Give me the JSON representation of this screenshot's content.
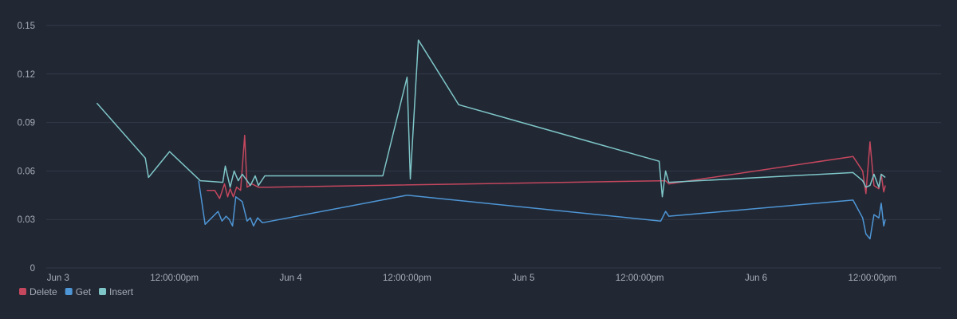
{
  "chart_data": {
    "type": "line",
    "title": "",
    "xlabel": "",
    "ylabel": "",
    "ylim": [
      0,
      0.15
    ],
    "xlim": [
      "2021-06-02 22:47",
      "2021-06-06 19:05"
    ],
    "grid": true,
    "legend_position": "bottom-left",
    "y_ticks": [
      {
        "value": 0.15,
        "label": "0.15"
      },
      {
        "value": 0.12,
        "label": "0.12"
      },
      {
        "value": 0.09,
        "label": "0.09"
      },
      {
        "value": 0.06,
        "label": "0.06"
      },
      {
        "value": 0.03,
        "label": "0.03"
      },
      {
        "value": 0,
        "label": "0"
      }
    ],
    "x_ticks": [
      {
        "value": "2021-06-03 00:00",
        "label": "Jun 3"
      },
      {
        "value": "2021-06-03 12:00",
        "label": "12:00:00pm"
      },
      {
        "value": "2021-06-04 00:00",
        "label": "Jun 4"
      },
      {
        "value": "2021-06-04 12:00",
        "label": "12:00:00pm"
      },
      {
        "value": "2021-06-05 00:00",
        "label": "Jun 5"
      },
      {
        "value": "2021-06-05 12:00",
        "label": "12:00:00pm"
      },
      {
        "value": "2021-06-06 00:00",
        "label": "Jun 6"
      },
      {
        "value": "2021-06-06 12:00",
        "label": "12:00:00pm"
      }
    ],
    "series": [
      {
        "name": "Delete",
        "color": "#c4475e",
        "points": [
          [
            "2021-06-03 15:20",
            0.048
          ],
          [
            "2021-06-03 16:10",
            0.048
          ],
          [
            "2021-06-03 16:40",
            0.043
          ],
          [
            "2021-06-03 17:10",
            0.052
          ],
          [
            "2021-06-03 17:30",
            0.044
          ],
          [
            "2021-06-03 17:45",
            0.049
          ],
          [
            "2021-06-03 18:05",
            0.044
          ],
          [
            "2021-06-03 18:25",
            0.05
          ],
          [
            "2021-06-03 18:50",
            0.048
          ],
          [
            "2021-06-03 19:15",
            0.082
          ],
          [
            "2021-06-03 19:30",
            0.05
          ],
          [
            "2021-06-03 20:00",
            0.052
          ],
          [
            "2021-06-03 20:40",
            0.05
          ],
          [
            "2021-06-03 21:40",
            0.05
          ],
          [
            "2021-06-05 14:40",
            0.054
          ],
          [
            "2021-06-05 15:00",
            0.052
          ],
          [
            "2021-06-06 10:00",
            0.069
          ],
          [
            "2021-06-06 11:00",
            0.06
          ],
          [
            "2021-06-06 11:20",
            0.046
          ],
          [
            "2021-06-06 11:45",
            0.078
          ],
          [
            "2021-06-06 12:10",
            0.051
          ],
          [
            "2021-06-06 12:40",
            0.049
          ],
          [
            "2021-06-06 12:55",
            0.058
          ],
          [
            "2021-06-06 13:10",
            0.047
          ],
          [
            "2021-06-06 13:20",
            0.051
          ]
        ]
      },
      {
        "name": "Get",
        "color": "#4e96d6",
        "points": [
          [
            "2021-06-03 14:30",
            0.054
          ],
          [
            "2021-06-03 15:10",
            0.027
          ],
          [
            "2021-06-03 16:30",
            0.035
          ],
          [
            "2021-06-03 16:55",
            0.029
          ],
          [
            "2021-06-03 17:20",
            0.032
          ],
          [
            "2021-06-03 17:40",
            0.03
          ],
          [
            "2021-06-03 18:00",
            0.026
          ],
          [
            "2021-06-03 18:20",
            0.044
          ],
          [
            "2021-06-03 19:00",
            0.041
          ],
          [
            "2021-06-03 19:30",
            0.029
          ],
          [
            "2021-06-03 19:50",
            0.031
          ],
          [
            "2021-06-03 20:10",
            0.026
          ],
          [
            "2021-06-03 20:35",
            0.031
          ],
          [
            "2021-06-03 21:05",
            0.028
          ],
          [
            "2021-06-04 12:00",
            0.045
          ],
          [
            "2021-06-05 14:10",
            0.029
          ],
          [
            "2021-06-05 14:40",
            0.035
          ],
          [
            "2021-06-05 15:00",
            0.032
          ],
          [
            "2021-06-06 10:00",
            0.042
          ],
          [
            "2021-06-06 11:00",
            0.031
          ],
          [
            "2021-06-06 11:20",
            0.021
          ],
          [
            "2021-06-06 11:45",
            0.018
          ],
          [
            "2021-06-06 12:10",
            0.033
          ],
          [
            "2021-06-06 12:40",
            0.031
          ],
          [
            "2021-06-06 12:55",
            0.04
          ],
          [
            "2021-06-06 13:10",
            0.026
          ],
          [
            "2021-06-06 13:20",
            0.03
          ]
        ]
      },
      {
        "name": "Insert",
        "color": "#7ec6c8",
        "points": [
          [
            "2021-06-03 04:00",
            0.102
          ],
          [
            "2021-06-03 09:00",
            0.068
          ],
          [
            "2021-06-03 09:20",
            0.056
          ],
          [
            "2021-06-03 11:30",
            0.072
          ],
          [
            "2021-06-03 14:40",
            0.054
          ],
          [
            "2021-06-03 17:00",
            0.053
          ],
          [
            "2021-06-03 17:15",
            0.063
          ],
          [
            "2021-06-03 17:45",
            0.05
          ],
          [
            "2021-06-03 18:10",
            0.06
          ],
          [
            "2021-06-03 18:35",
            0.054
          ],
          [
            "2021-06-03 19:00",
            0.058
          ],
          [
            "2021-06-03 19:30",
            0.054
          ],
          [
            "2021-06-03 19:50",
            0.051
          ],
          [
            "2021-06-03 20:20",
            0.057
          ],
          [
            "2021-06-03 20:40",
            0.051
          ],
          [
            "2021-06-03 21:20",
            0.057
          ],
          [
            "2021-06-04 09:30",
            0.057
          ],
          [
            "2021-06-04 12:00",
            0.118
          ],
          [
            "2021-06-04 12:20",
            0.055
          ],
          [
            "2021-06-04 13:10",
            0.141
          ],
          [
            "2021-06-04 17:20",
            0.101
          ],
          [
            "2021-06-05 14:00",
            0.066
          ],
          [
            "2021-06-05 14:20",
            0.044
          ],
          [
            "2021-06-05 14:40",
            0.06
          ],
          [
            "2021-06-05 15:00",
            0.053
          ],
          [
            "2021-06-06 10:00",
            0.059
          ],
          [
            "2021-06-06 11:00",
            0.054
          ],
          [
            "2021-06-06 11:20",
            0.05
          ],
          [
            "2021-06-06 11:45",
            0.051
          ],
          [
            "2021-06-06 12:10",
            0.058
          ],
          [
            "2021-06-06 12:40",
            0.05
          ],
          [
            "2021-06-06 12:55",
            0.058
          ],
          [
            "2021-06-06 13:20",
            0.056
          ]
        ]
      }
    ]
  },
  "colors": {
    "background": "#212733",
    "grid": "#323a48",
    "text": "#a7adb8"
  }
}
